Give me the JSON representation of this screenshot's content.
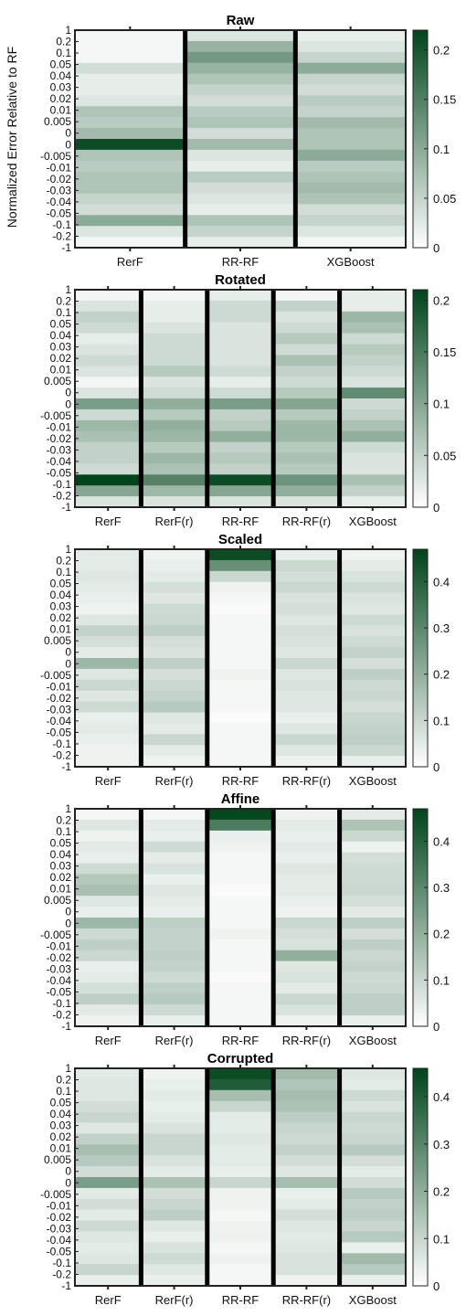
{
  "ylabel": "Normalized Error Relative to RF",
  "yticks": [
    "1",
    "0.2",
    "0.1",
    "0.05",
    "0.04",
    "0.03",
    "0.02",
    "0.01",
    "0.005",
    "0",
    "0",
    "-0.005",
    "-0.01",
    "-0.02",
    "-0.03",
    "-0.04",
    "-0.05",
    "-0.1",
    "-0.2",
    "-1"
  ],
  "colormap": {
    "low": "#ffffff",
    "high": "#00441b"
  },
  "chart_data": [
    {
      "type": "heatmap",
      "title": "Raw",
      "columns": [
        "RerF",
        "RR-RF",
        "XGBoost"
      ],
      "rows": [
        "1",
        "0.2",
        "0.1",
        "0.05",
        "0.04",
        "0.03",
        "0.02",
        "0.01",
        "0.005",
        "0",
        "0",
        "-0.005",
        "-0.01",
        "-0.02",
        "-0.03",
        "-0.04",
        "-0.05",
        "-0.1",
        "-0.2",
        "-1"
      ],
      "cbar_max": 0.22,
      "cbar_ticks": [
        0,
        0.05,
        0.1,
        0.15,
        0.2
      ],
      "values": [
        [
          0.01,
          0.03,
          0.02
        ],
        [
          0.01,
          0.09,
          0.03
        ],
        [
          0.01,
          0.12,
          0.05
        ],
        [
          0.04,
          0.09,
          0.1
        ],
        [
          0.02,
          0.07,
          0.05
        ],
        [
          0.02,
          0.05,
          0.04
        ],
        [
          0.03,
          0.04,
          0.06
        ],
        [
          0.07,
          0.06,
          0.05
        ],
        [
          0.06,
          0.07,
          0.08
        ],
        [
          0.08,
          0.04,
          0.07
        ],
        [
          0.21,
          0.08,
          0.07
        ],
        [
          0.07,
          0.03,
          0.1
        ],
        [
          0.06,
          0.02,
          0.06
        ],
        [
          0.07,
          0.06,
          0.07
        ],
        [
          0.07,
          0.04,
          0.08
        ],
        [
          0.05,
          0.03,
          0.07
        ],
        [
          0.04,
          0.02,
          0.04
        ],
        [
          0.1,
          0.07,
          0.05
        ],
        [
          0.03,
          0.05,
          0.03
        ],
        [
          0.01,
          0.02,
          0.01
        ]
      ]
    },
    {
      "type": "heatmap",
      "title": "Rotated",
      "columns": [
        "RerF",
        "RerF(r)",
        "RR-RF",
        "RR-RF(r)",
        "XGBoost"
      ],
      "rows": [
        "1",
        "0.2",
        "0.1",
        "0.05",
        "0.04",
        "0.03",
        "0.02",
        "0.01",
        "0.005",
        "0",
        "0",
        "-0.005",
        "-0.01",
        "-0.02",
        "-0.03",
        "-0.04",
        "-0.05",
        "-0.1",
        "-0.2",
        "-1"
      ],
      "cbar_max": 0.21,
      "cbar_ticks": [
        0,
        0.05,
        0.1,
        0.15,
        0.2
      ],
      "values": [
        [
          0.01,
          0.01,
          0.02,
          0.01,
          0.02
        ],
        [
          0.03,
          0.02,
          0.04,
          0.05,
          0.02
        ],
        [
          0.05,
          0.02,
          0.04,
          0.03,
          0.08
        ],
        [
          0.04,
          0.03,
          0.03,
          0.04,
          0.07
        ],
        [
          0.02,
          0.04,
          0.03,
          0.06,
          0.04
        ],
        [
          0.03,
          0.04,
          0.03,
          0.04,
          0.06
        ],
        [
          0.04,
          0.04,
          0.03,
          0.07,
          0.05
        ],
        [
          0.03,
          0.06,
          0.04,
          0.05,
          0.04
        ],
        [
          0.01,
          0.03,
          0.02,
          0.04,
          0.03
        ],
        [
          0.03,
          0.04,
          0.04,
          0.06,
          0.13
        ],
        [
          0.11,
          0.09,
          0.11,
          0.1,
          0.04
        ],
        [
          0.04,
          0.06,
          0.05,
          0.06,
          0.05
        ],
        [
          0.08,
          0.09,
          0.06,
          0.08,
          0.07
        ],
        [
          0.07,
          0.08,
          0.09,
          0.08,
          0.09
        ],
        [
          0.05,
          0.06,
          0.05,
          0.06,
          0.04
        ],
        [
          0.05,
          0.08,
          0.06,
          0.07,
          0.03
        ],
        [
          0.04,
          0.07,
          0.05,
          0.06,
          0.03
        ],
        [
          0.21,
          0.14,
          0.2,
          0.12,
          0.07
        ],
        [
          0.1,
          0.08,
          0.1,
          0.09,
          0.05
        ],
        [
          0.03,
          0.03,
          0.03,
          0.03,
          0.02
        ]
      ]
    },
    {
      "type": "heatmap",
      "title": "Scaled",
      "columns": [
        "RerF",
        "RerF(r)",
        "RR-RF",
        "RR-RF(r)",
        "XGBoost"
      ],
      "rows": [
        "1",
        "0.2",
        "0.1",
        "0.05",
        "0.04",
        "0.03",
        "0.02",
        "0.01",
        "0.005",
        "0",
        "0",
        "-0.005",
        "-0.01",
        "-0.02",
        "-0.03",
        "-0.04",
        "-0.05",
        "-0.1",
        "-0.2",
        "-1"
      ],
      "cbar_max": 0.47,
      "cbar_ticks": [
        0,
        0.1,
        0.2,
        0.3,
        0.4
      ],
      "values": [
        [
          0.05,
          0.03,
          0.45,
          0.04,
          0.03
        ],
        [
          0.05,
          0.04,
          0.28,
          0.1,
          0.05
        ],
        [
          0.06,
          0.05,
          0.1,
          0.08,
          0.07
        ],
        [
          0.05,
          0.08,
          0.03,
          0.1,
          0.09
        ],
        [
          0.04,
          0.06,
          0.02,
          0.07,
          0.07
        ],
        [
          0.03,
          0.09,
          0.01,
          0.08,
          0.06
        ],
        [
          0.06,
          0.1,
          0.02,
          0.06,
          0.09
        ],
        [
          0.11,
          0.12,
          0.02,
          0.08,
          0.07
        ],
        [
          0.08,
          0.08,
          0.02,
          0.07,
          0.09
        ],
        [
          0.05,
          0.07,
          0.02,
          0.06,
          0.11
        ],
        [
          0.18,
          0.12,
          0.02,
          0.1,
          0.08
        ],
        [
          0.06,
          0.08,
          0.03,
          0.06,
          0.12
        ],
        [
          0.1,
          0.1,
          0.02,
          0.07,
          0.09
        ],
        [
          0.06,
          0.11,
          0.02,
          0.06,
          0.1
        ],
        [
          0.09,
          0.13,
          0.02,
          0.06,
          0.08
        ],
        [
          0.04,
          0.06,
          0.01,
          0.04,
          0.1
        ],
        [
          0.05,
          0.05,
          0.02,
          0.06,
          0.11
        ],
        [
          0.04,
          0.1,
          0.02,
          0.1,
          0.12
        ],
        [
          0.03,
          0.05,
          0.02,
          0.06,
          0.1
        ],
        [
          0.03,
          0.03,
          0.02,
          0.03,
          0.04
        ]
      ]
    },
    {
      "type": "heatmap",
      "title": "Affine",
      "columns": [
        "RerF",
        "RerF(r)",
        "RR-RF",
        "RR-RF(r)",
        "XGBoost"
      ],
      "rows": [
        "1",
        "0.2",
        "0.1",
        "0.05",
        "0.04",
        "0.03",
        "0.02",
        "0.01",
        "0.005",
        "0",
        "0",
        "-0.005",
        "-0.01",
        "-0.02",
        "-0.03",
        "-0.04",
        "-0.05",
        "-0.1",
        "-0.2",
        "-1"
      ],
      "cbar_max": 0.47,
      "cbar_ticks": [
        0,
        0.1,
        0.2,
        0.3,
        0.4
      ],
      "values": [
        [
          0.02,
          0.02,
          0.46,
          0.03,
          0.05
        ],
        [
          0.06,
          0.05,
          0.33,
          0.05,
          0.15
        ],
        [
          0.03,
          0.04,
          0.04,
          0.04,
          0.1
        ],
        [
          0.05,
          0.09,
          0.03,
          0.05,
          0.03
        ],
        [
          0.04,
          0.05,
          0.02,
          0.04,
          0.08
        ],
        [
          0.09,
          0.07,
          0.02,
          0.06,
          0.09
        ],
        [
          0.14,
          0.04,
          0.02,
          0.05,
          0.09
        ],
        [
          0.16,
          0.06,
          0.01,
          0.05,
          0.1
        ],
        [
          0.06,
          0.05,
          0.02,
          0.04,
          0.08
        ],
        [
          0.04,
          0.04,
          0.02,
          0.03,
          0.05
        ],
        [
          0.18,
          0.12,
          0.02,
          0.1,
          0.12
        ],
        [
          0.09,
          0.11,
          0.03,
          0.08,
          0.08
        ],
        [
          0.12,
          0.11,
          0.02,
          0.07,
          0.12
        ],
        [
          0.1,
          0.12,
          0.02,
          0.2,
          0.1
        ],
        [
          0.04,
          0.11,
          0.02,
          0.06,
          0.11
        ],
        [
          0.05,
          0.09,
          0.01,
          0.07,
          0.09
        ],
        [
          0.08,
          0.12,
          0.02,
          0.05,
          0.1
        ],
        [
          0.12,
          0.13,
          0.02,
          0.1,
          0.12
        ],
        [
          0.05,
          0.09,
          0.02,
          0.07,
          0.12
        ],
        [
          0.03,
          0.04,
          0.02,
          0.03,
          0.04
        ]
      ]
    },
    {
      "type": "heatmap",
      "title": "Corrupted",
      "columns": [
        "RerF",
        "RerF(r)",
        "RR-RF",
        "RR-RF(r)",
        "XGBoost"
      ],
      "rows": [
        "1",
        "0.2",
        "0.1",
        "0.05",
        "0.04",
        "0.03",
        "0.02",
        "0.01",
        "0.005",
        "0",
        "0",
        "-0.005",
        "-0.01",
        "-0.02",
        "-0.03",
        "-0.04",
        "-0.05",
        "-0.1",
        "-0.2",
        "-1"
      ],
      "cbar_max": 0.46,
      "cbar_ticks": [
        0,
        0.1,
        0.2,
        0.3,
        0.4
      ],
      "values": [
        [
          0.05,
          0.03,
          0.44,
          0.17,
          0.06
        ],
        [
          0.06,
          0.04,
          0.4,
          0.14,
          0.05
        ],
        [
          0.06,
          0.05,
          0.16,
          0.16,
          0.09
        ],
        [
          0.08,
          0.04,
          0.1,
          0.15,
          0.07
        ],
        [
          0.1,
          0.05,
          0.05,
          0.12,
          0.1
        ],
        [
          0.06,
          0.07,
          0.05,
          0.1,
          0.09
        ],
        [
          0.11,
          0.1,
          0.06,
          0.09,
          0.1
        ],
        [
          0.16,
          0.1,
          0.05,
          0.11,
          0.13
        ],
        [
          0.13,
          0.07,
          0.05,
          0.08,
          0.08
        ],
        [
          0.08,
          0.05,
          0.04,
          0.06,
          0.05
        ],
        [
          0.24,
          0.15,
          0.1,
          0.16,
          0.08
        ],
        [
          0.05,
          0.08,
          0.03,
          0.04,
          0.13
        ],
        [
          0.08,
          0.1,
          0.03,
          0.05,
          0.11
        ],
        [
          0.05,
          0.12,
          0.02,
          0.08,
          0.12
        ],
        [
          0.09,
          0.06,
          0.03,
          0.06,
          0.1
        ],
        [
          0.06,
          0.04,
          0.03,
          0.05,
          0.13
        ],
        [
          0.05,
          0.07,
          0.02,
          0.06,
          0.04
        ],
        [
          0.06,
          0.09,
          0.03,
          0.07,
          0.17
        ],
        [
          0.1,
          0.06,
          0.02,
          0.07,
          0.13
        ],
        [
          0.04,
          0.04,
          0.02,
          0.03,
          0.04
        ]
      ]
    }
  ]
}
